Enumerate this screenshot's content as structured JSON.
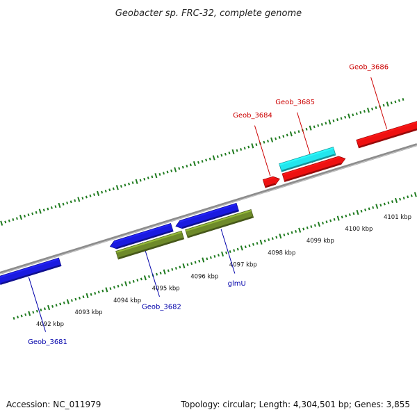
{
  "title": "Geobacter sp. FRC-32, complete genome",
  "footer": {
    "accession": "Accession: NC_011979",
    "summary": "Topology: circular; Length: 4,304,501 bp; Genes: 3,855"
  },
  "colors": {
    "backbone": "#8c8c8c",
    "tick": "#1e7a1e",
    "reverse_label": "#cc0000",
    "forward_label": "#0000aa",
    "red_gene": "#ee1111",
    "cyan_gene": "#22e6ee",
    "blue_gene": "#1a1ae0",
    "olive_gene": "#6e8a2a"
  },
  "scale": {
    "start_kbp": 4091.6,
    "end_kbp": 4102.4,
    "labels": [
      "4092 kbp",
      "4093 kbp",
      "4094 kbp",
      "4095 kbp",
      "4096 kbp",
      "4097 kbp",
      "4098 kbp",
      "4099 kbp",
      "4100 kbp",
      "4101 kbp"
    ],
    "label_positions_kbp": [
      4092,
      4093,
      4094,
      4095,
      4096,
      4097,
      4098,
      4099,
      4100,
      4101
    ]
  },
  "genes": [
    {
      "label": "Geob_3681",
      "track": "fwd-outer",
      "start_kbp": 4091.4,
      "end_kbp": 4093.1,
      "color": "blue_gene",
      "arrow": "start",
      "label_side": "below"
    },
    {
      "label": "Geob_3682",
      "track": "fwd-outer",
      "start_kbp": 4094.4,
      "end_kbp": 4096.0,
      "color": "blue_gene",
      "arrow": "start",
      "label_side": "below"
    },
    {
      "label": "",
      "track": "fwd-outer",
      "start_kbp": 4096.1,
      "end_kbp": 4097.7,
      "color": "blue_gene",
      "arrow": "start",
      "label_side": "none"
    },
    {
      "label": "",
      "track": "fwd-inner",
      "start_kbp": 4094.5,
      "end_kbp": 4096.2,
      "color": "olive_gene",
      "arrow": "none",
      "label_side": "none"
    },
    {
      "label": "glmU",
      "track": "fwd-inner",
      "start_kbp": 4096.3,
      "end_kbp": 4098.0,
      "color": "olive_gene",
      "arrow": "none",
      "label_side": "below"
    },
    {
      "label": "Geob_3684",
      "track": "rev-inner",
      "start_kbp": 4098.5,
      "end_kbp": 4098.9,
      "color": "red_gene",
      "arrow": "end",
      "label_side": "above"
    },
    {
      "label": "Geob_3685",
      "track": "rev-inner",
      "start_kbp": 4099.0,
      "end_kbp": 4100.6,
      "color": "red_gene",
      "arrow": "end",
      "label_side": "above"
    },
    {
      "label": "",
      "track": "rev-outer",
      "start_kbp": 4099.0,
      "end_kbp": 4100.4,
      "color": "cyan_gene",
      "arrow": "none",
      "label_side": "none"
    },
    {
      "label": "Geob_3686",
      "track": "rev-outer",
      "start_kbp": 4101.0,
      "end_kbp": 4102.6,
      "color": "red_gene",
      "arrow": "none",
      "label_side": "above"
    }
  ]
}
